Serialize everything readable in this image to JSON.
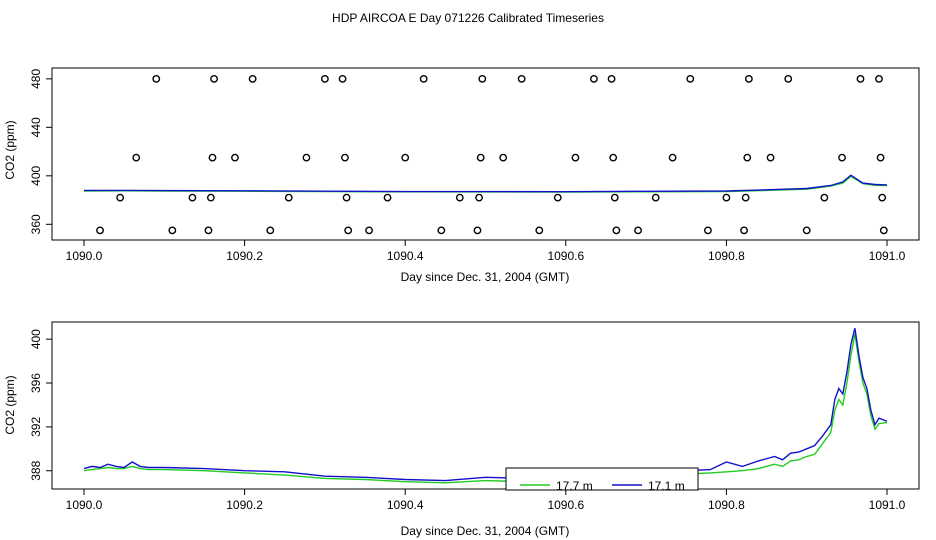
{
  "figure": {
    "title": "HDP AIRCOA E  Day 071226  Calibrated Timeseries"
  },
  "colors": {
    "green": "#22cc22",
    "blue": "#1111cc",
    "frame": "#000000"
  },
  "chart_data": [
    {
      "type": "scatter",
      "xlabel": "Day since Dec. 31, 2004 (GMT)",
      "ylabel": "CO2 (ppm)",
      "xlim": [
        1090.0,
        1091.0
      ],
      "ylim": [
        352,
        484
      ],
      "x_ticks": [
        1090.0,
        1090.2,
        1090.4,
        1090.6,
        1090.8,
        1091.0
      ],
      "x_tick_labels": [
        "1090.0",
        "1090.2",
        "1090.4",
        "1090.6",
        "1090.8",
        "1091.0"
      ],
      "y_ticks": [
        360,
        400,
        440,
        480
      ],
      "y_tick_labels": [
        "360",
        "400",
        "440",
        "480"
      ],
      "grid": false,
      "points": [
        [
          1090.02,
          355
        ],
        [
          1090.045,
          382
        ],
        [
          1090.065,
          415
        ],
        [
          1090.09,
          480
        ],
        [
          1090.11,
          355
        ],
        [
          1090.135,
          382
        ],
        [
          1090.155,
          355
        ],
        [
          1090.158,
          382
        ],
        [
          1090.16,
          415
        ],
        [
          1090.162,
          480
        ],
        [
          1090.188,
          415
        ],
        [
          1090.21,
          480
        ],
        [
          1090.232,
          355
        ],
        [
          1090.255,
          382
        ],
        [
          1090.277,
          415
        ],
        [
          1090.3,
          480
        ],
        [
          1090.322,
          480
        ],
        [
          1090.325,
          415
        ],
        [
          1090.327,
          382
        ],
        [
          1090.329,
          355
        ],
        [
          1090.355,
          355
        ],
        [
          1090.378,
          382
        ],
        [
          1090.4,
          415
        ],
        [
          1090.423,
          480
        ],
        [
          1090.445,
          355
        ],
        [
          1090.468,
          382
        ],
        [
          1090.49,
          355
        ],
        [
          1090.492,
          382
        ],
        [
          1090.494,
          415
        ],
        [
          1090.496,
          480
        ],
        [
          1090.522,
          415
        ],
        [
          1090.545,
          480
        ],
        [
          1090.567,
          355
        ],
        [
          1090.59,
          382
        ],
        [
          1090.612,
          415
        ],
        [
          1090.635,
          480
        ],
        [
          1090.657,
          480
        ],
        [
          1090.659,
          415
        ],
        [
          1090.661,
          382
        ],
        [
          1090.663,
          355
        ],
        [
          1090.69,
          355
        ],
        [
          1090.712,
          382
        ],
        [
          1090.733,
          415
        ],
        [
          1090.755,
          480
        ],
        [
          1090.777,
          355
        ],
        [
          1090.8,
          382
        ],
        [
          1090.822,
          355
        ],
        [
          1090.824,
          382
        ],
        [
          1090.826,
          415
        ],
        [
          1090.828,
          480
        ],
        [
          1090.855,
          415
        ],
        [
          1090.877,
          480
        ],
        [
          1090.9,
          355
        ],
        [
          1090.922,
          382
        ],
        [
          1090.944,
          415
        ],
        [
          1090.967,
          480
        ],
        [
          1090.99,
          480
        ],
        [
          1090.992,
          415
        ],
        [
          1090.994,
          382
        ],
        [
          1090.996,
          355
        ]
      ],
      "series": [
        {
          "color": "#22cc22",
          "x": [
            1090.0,
            1090.05,
            1090.1,
            1090.2,
            1090.3,
            1090.4,
            1090.5,
            1090.6,
            1090.7,
            1090.8,
            1090.85,
            1090.9,
            1090.93,
            1090.945,
            1090.955,
            1090.97,
            1090.985,
            1091.0
          ],
          "values": [
            387.5,
            387.6,
            387.4,
            387.3,
            387.0,
            386.8,
            386.7,
            386.6,
            386.8,
            387.0,
            388.0,
            389.0,
            391.5,
            394.0,
            399.5,
            393.5,
            392.2,
            392.0
          ]
        },
        {
          "color": "#1111cc",
          "x": [
            1090.0,
            1090.05,
            1090.1,
            1090.2,
            1090.3,
            1090.4,
            1090.5,
            1090.6,
            1090.7,
            1090.8,
            1090.85,
            1090.9,
            1090.93,
            1090.945,
            1090.955,
            1090.97,
            1090.985,
            1091.0
          ],
          "values": [
            388.0,
            388.0,
            387.8,
            387.6,
            387.3,
            387.0,
            387.0,
            386.9,
            387.2,
            387.5,
            388.5,
            389.5,
            392.0,
            395.0,
            400.5,
            394.0,
            392.8,
            392.5
          ]
        }
      ]
    },
    {
      "type": "line",
      "xlabel": "Day since Dec. 31, 2004 (GMT)",
      "ylabel": "CO2 (ppm)",
      "xlim": [
        1090.0,
        1091.0
      ],
      "ylim": [
        386.7,
        401.2
      ],
      "x_ticks": [
        1090.0,
        1090.2,
        1090.4,
        1090.6,
        1090.8,
        1091.0
      ],
      "x_tick_labels": [
        "1090.0",
        "1090.2",
        "1090.4",
        "1090.6",
        "1090.8",
        "1091.0"
      ],
      "y_ticks": [
        388,
        392,
        396,
        400
      ],
      "y_tick_labels": [
        "388",
        "392",
        "396",
        "400"
      ],
      "grid": false,
      "legend": {
        "placement": "bottom-center",
        "entries": [
          {
            "label": "17.7 m",
            "color": "#22cc22"
          },
          {
            "label": "17.1 m",
            "color": "#1111cc"
          }
        ]
      },
      "series": [
        {
          "name": "17.7 m",
          "color": "#22cc22",
          "x": [
            1090.0,
            1090.01,
            1090.02,
            1090.03,
            1090.04,
            1090.05,
            1090.06,
            1090.07,
            1090.08,
            1090.1,
            1090.15,
            1090.2,
            1090.25,
            1090.3,
            1090.35,
            1090.4,
            1090.45,
            1090.5,
            1090.55,
            1090.6,
            1090.65,
            1090.7,
            1090.75,
            1090.78,
            1090.8,
            1090.82,
            1090.84,
            1090.86,
            1090.87,
            1090.88,
            1090.89,
            1090.9,
            1090.91,
            1090.92,
            1090.93,
            1090.935,
            1090.94,
            1090.945,
            1090.95,
            1090.955,
            1090.96,
            1090.965,
            1090.97,
            1090.975,
            1090.98,
            1090.985,
            1090.99,
            1091.0
          ],
          "values": [
            388.0,
            388.1,
            388.2,
            388.3,
            388.2,
            388.2,
            388.4,
            388.2,
            388.1,
            388.1,
            388.0,
            387.8,
            387.6,
            387.3,
            387.2,
            387.0,
            386.9,
            387.1,
            387.0,
            387.1,
            387.4,
            387.6,
            387.7,
            387.8,
            387.9,
            388.0,
            388.2,
            388.6,
            388.4,
            388.9,
            389.0,
            389.3,
            389.5,
            390.5,
            391.5,
            393.5,
            394.5,
            394.0,
            396.0,
            398.5,
            400.5,
            398.0,
            396.0,
            395.0,
            393.0,
            391.8,
            392.3,
            392.4
          ]
        },
        {
          "name": "17.1 m",
          "color": "#1111cc",
          "x": [
            1090.0,
            1090.01,
            1090.02,
            1090.03,
            1090.04,
            1090.05,
            1090.06,
            1090.07,
            1090.08,
            1090.1,
            1090.15,
            1090.2,
            1090.25,
            1090.3,
            1090.35,
            1090.4,
            1090.45,
            1090.5,
            1090.55,
            1090.6,
            1090.65,
            1090.7,
            1090.75,
            1090.78,
            1090.8,
            1090.82,
            1090.84,
            1090.86,
            1090.87,
            1090.88,
            1090.89,
            1090.9,
            1090.91,
            1090.92,
            1090.93,
            1090.935,
            1090.94,
            1090.945,
            1090.95,
            1090.955,
            1090.96,
            1090.965,
            1090.97,
            1090.975,
            1090.98,
            1090.985,
            1090.99,
            1091.0
          ],
          "values": [
            388.2,
            388.4,
            388.3,
            388.6,
            388.4,
            388.3,
            388.8,
            388.4,
            388.3,
            388.3,
            388.2,
            388.0,
            387.9,
            387.5,
            387.4,
            387.2,
            387.1,
            387.4,
            387.3,
            387.4,
            387.7,
            387.9,
            388.0,
            388.1,
            388.8,
            388.4,
            388.9,
            389.3,
            389.0,
            389.6,
            389.7,
            390.0,
            390.3,
            391.2,
            392.2,
            394.5,
            395.5,
            395.0,
            397.0,
            399.5,
            401.0,
            398.5,
            396.5,
            395.5,
            393.5,
            392.2,
            392.8,
            392.5
          ]
        }
      ]
    }
  ]
}
